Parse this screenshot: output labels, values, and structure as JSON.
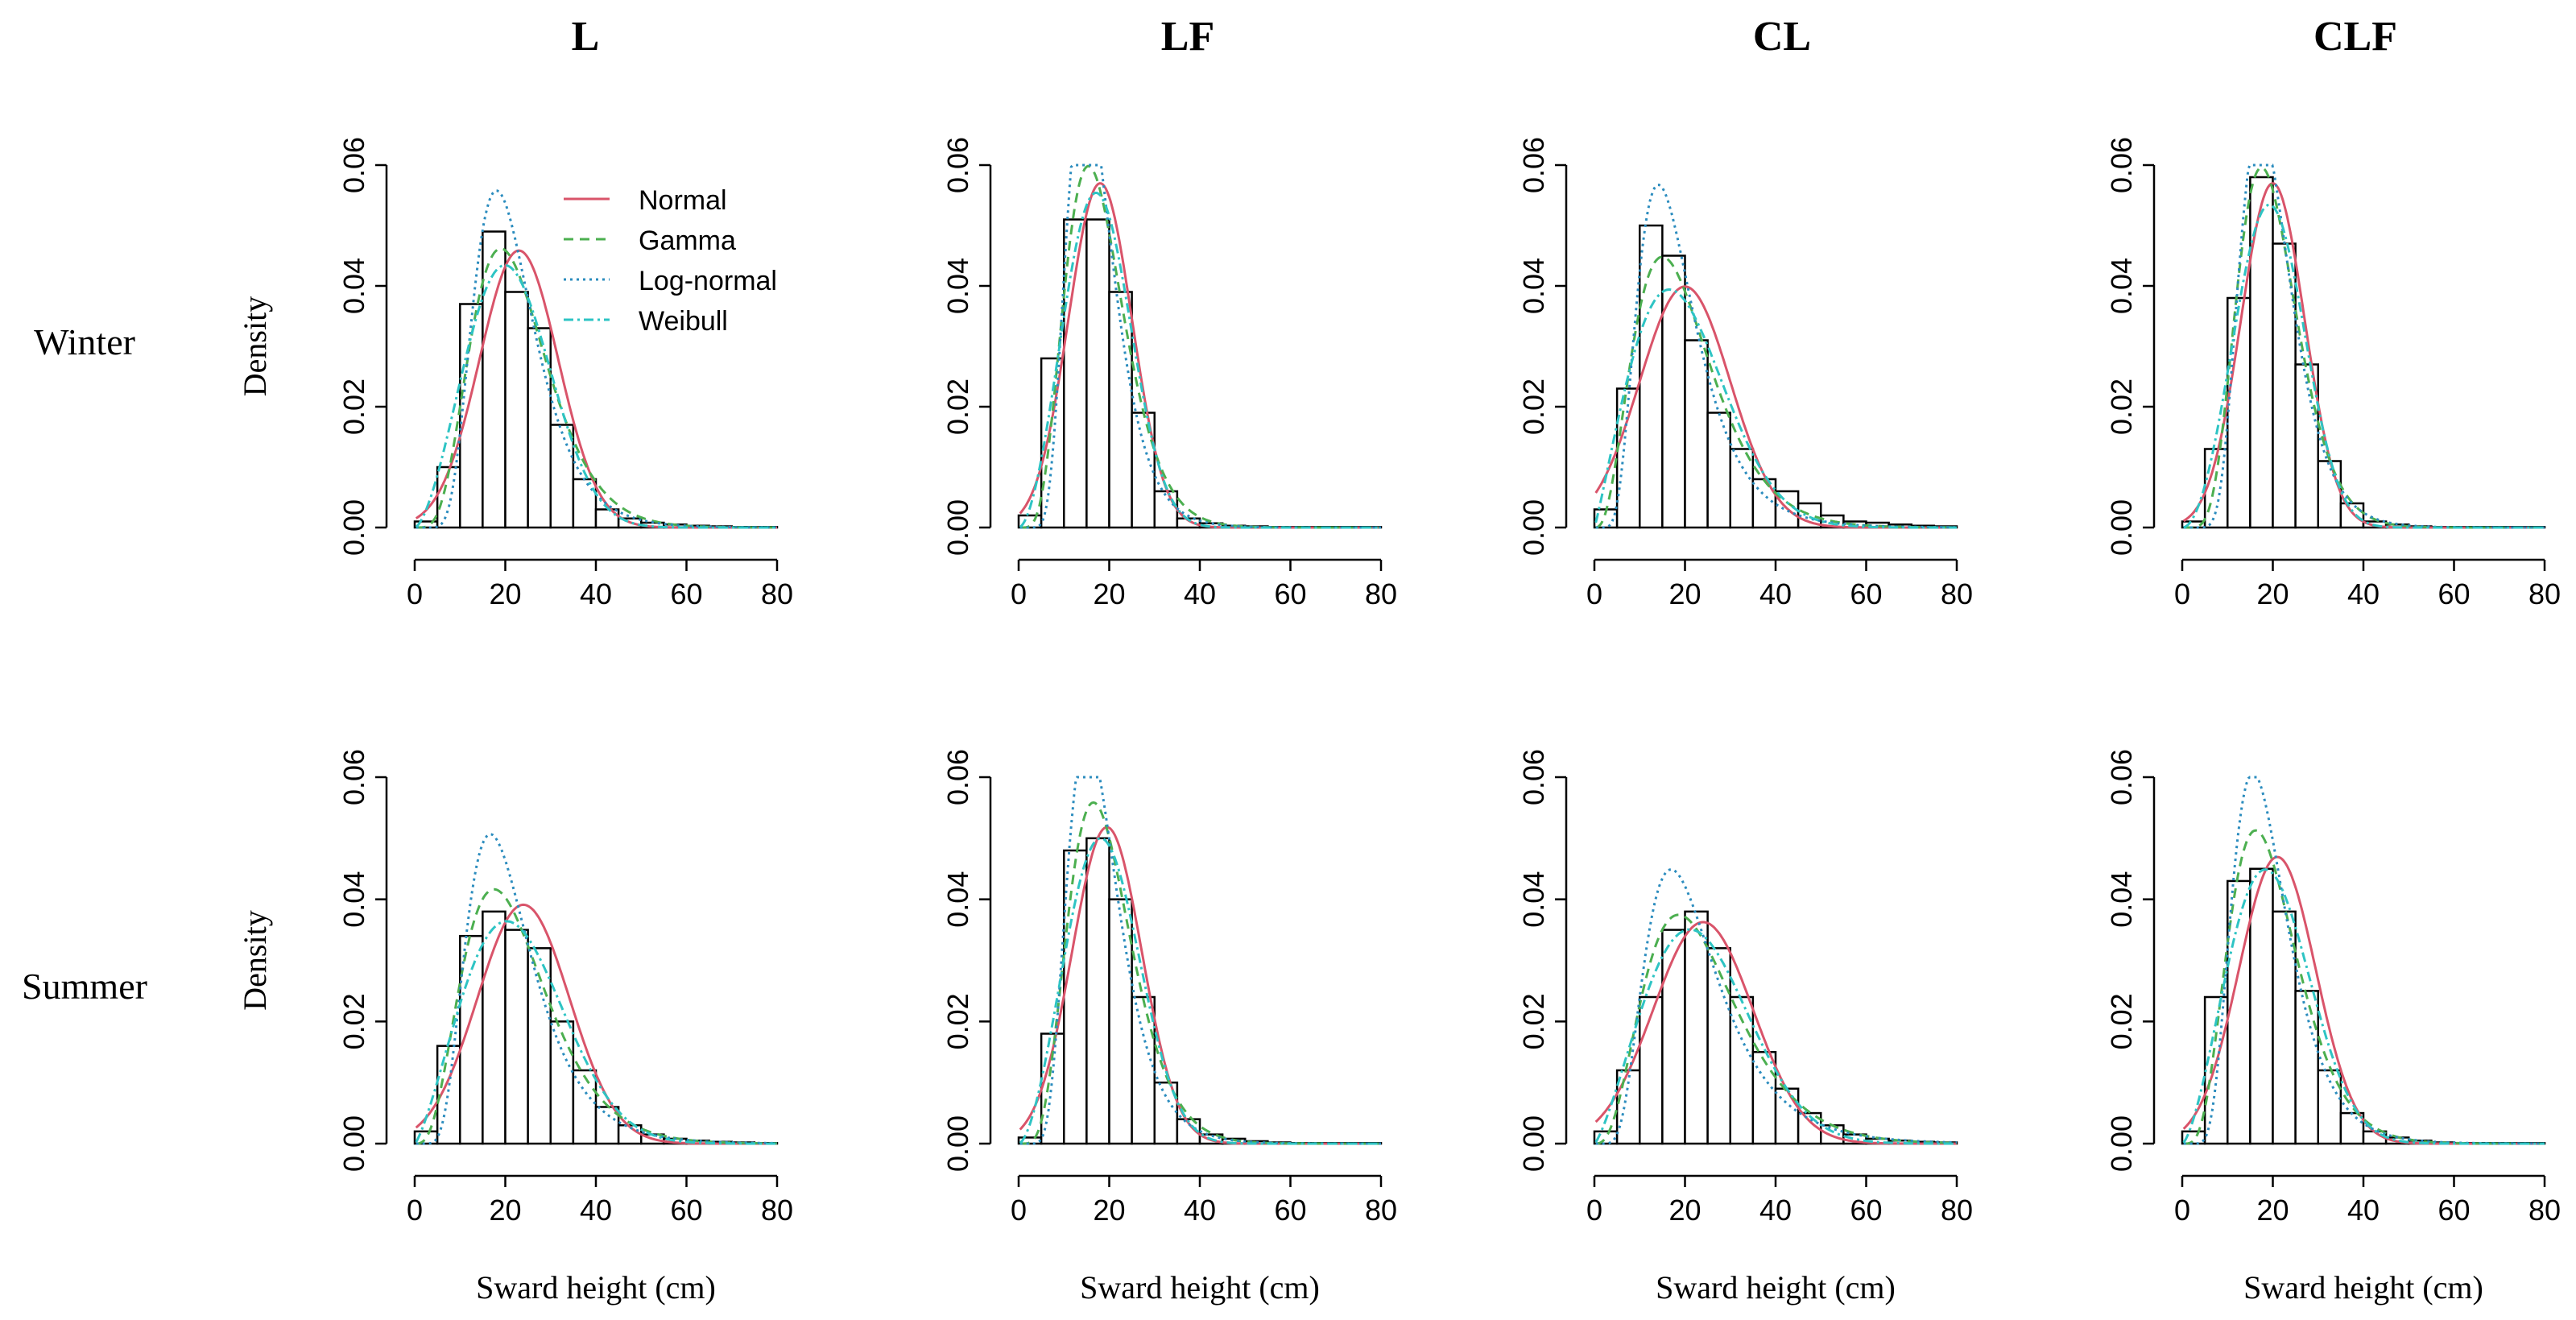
{
  "figure": {
    "column_titles": [
      "L",
      "LF",
      "CL",
      "CLF"
    ],
    "row_titles": [
      "Winter",
      "Summer"
    ],
    "ylabel": "Density",
    "xlabel": "Sward height (cm)"
  },
  "legend": {
    "placement": "top-right of first panel",
    "entries": [
      {
        "name": "Normal",
        "color": "#d9546a",
        "style": "solid"
      },
      {
        "name": "Gamma",
        "color": "#4caf50",
        "style": "dashed"
      },
      {
        "name": "Log-normal",
        "color": "#2b8cbe",
        "style": "dotted"
      },
      {
        "name": "Weibull",
        "color": "#2ec4c4",
        "style": "dashdot"
      }
    ]
  },
  "chart_data": [
    {
      "type": "bar",
      "panel": "L - Winter",
      "column": 0,
      "row": 0,
      "bin_edges": [
        0,
        5,
        10,
        15,
        20,
        25,
        30,
        35,
        40,
        45,
        50,
        55,
        60,
        65,
        70,
        75,
        80
      ],
      "values": [
        0.001,
        0.01,
        0.037,
        0.049,
        0.039,
        0.033,
        0.017,
        0.008,
        0.003,
        0.0015,
        0.0008,
        0.0005,
        0.0003,
        0.0002,
        0.0001,
        0.0001
      ],
      "fits": {
        "normal": {
          "mean": 23.0,
          "sd": 8.7
        },
        "gamma": {
          "shape": 6.0,
          "scale": 3.8
        },
        "lognormal": {
          "meanlog": 3.03,
          "sdlog": 0.37
        },
        "weibull": {
          "shape": 2.6,
          "scale": 24.0
        }
      },
      "xlim": [
        0,
        80
      ],
      "ylim": [
        0,
        0.06
      ],
      "xticks": [
        "0",
        "20",
        "40",
        "60",
        "80"
      ],
      "yticks": [
        "0.00",
        "0.02",
        "0.04",
        "0.06"
      ]
    },
    {
      "type": "bar",
      "panel": "LF - Winter",
      "column": 1,
      "row": 0,
      "bin_edges": [
        0,
        5,
        10,
        15,
        20,
        25,
        30,
        35,
        40,
        45,
        50,
        55,
        60,
        65,
        70,
        75,
        80
      ],
      "values": [
        0.002,
        0.028,
        0.051,
        0.051,
        0.039,
        0.019,
        0.006,
        0.0015,
        0.0007,
        0.0003,
        0.0002,
        0.0001,
        0.0001,
        0.0001,
        0.0001,
        0.0001
      ],
      "fits": {
        "normal": {
          "mean": 18.0,
          "sd": 7.0
        },
        "gamma": {
          "shape": 6.5,
          "scale": 2.8
        },
        "lognormal": {
          "meanlog": 2.8,
          "sdlog": 0.35
        },
        "weibull": {
          "shape": 2.8,
          "scale": 20.0
        }
      },
      "xlim": [
        0,
        80
      ],
      "ylim": [
        0,
        0.06
      ],
      "xticks": [
        "0",
        "20",
        "40",
        "60",
        "80"
      ],
      "yticks": [
        "0.00",
        "0.02",
        "0.04",
        "0.06"
      ]
    },
    {
      "type": "bar",
      "panel": "CL - Winter",
      "column": 2,
      "row": 0,
      "bin_edges": [
        0,
        5,
        10,
        15,
        20,
        25,
        30,
        35,
        40,
        45,
        50,
        55,
        60,
        65,
        70,
        75,
        80
      ],
      "values": [
        0.003,
        0.023,
        0.05,
        0.045,
        0.031,
        0.019,
        0.013,
        0.008,
        0.006,
        0.004,
        0.002,
        0.001,
        0.0008,
        0.0005,
        0.0003,
        0.0002
      ],
      "fits": {
        "normal": {
          "mean": 20.0,
          "sd": 10.0
        },
        "gamma": {
          "shape": 4.0,
          "scale": 5.0
        },
        "lognormal": {
          "meanlog": 2.85,
          "sdlog": 0.45
        },
        "weibull": {
          "shape": 2.1,
          "scale": 22.5
        }
      },
      "xlim": [
        0,
        80
      ],
      "ylim": [
        0,
        0.06
      ],
      "xticks": [
        "0",
        "20",
        "40",
        "60",
        "80"
      ],
      "yticks": [
        "0.00",
        "0.02",
        "0.04",
        "0.06"
      ]
    },
    {
      "type": "bar",
      "panel": "CLF - Winter",
      "column": 3,
      "row": 0,
      "bin_edges": [
        0,
        5,
        10,
        15,
        20,
        25,
        30,
        35,
        40,
        45,
        50,
        55,
        60,
        65,
        70,
        75,
        80
      ],
      "values": [
        0.001,
        0.013,
        0.038,
        0.058,
        0.047,
        0.027,
        0.011,
        0.004,
        0.001,
        0.0005,
        0.0002,
        0.0001,
        0.0001,
        0.0001,
        0.0001,
        0.0001
      ],
      "fits": {
        "normal": {
          "mean": 20.0,
          "sd": 7.0
        },
        "gamma": {
          "shape": 8.0,
          "scale": 2.5
        },
        "lognormal": {
          "meanlog": 2.95,
          "sdlog": 0.33
        },
        "weibull": {
          "shape": 3.0,
          "scale": 22.0
        }
      },
      "xlim": [
        0,
        80
      ],
      "ylim": [
        0,
        0.06
      ],
      "xticks": [
        "0",
        "20",
        "40",
        "60",
        "80"
      ],
      "yticks": [
        "0.00",
        "0.02",
        "0.04",
        "0.06"
      ]
    },
    {
      "type": "bar",
      "panel": "L - Summer",
      "column": 0,
      "row": 1,
      "bin_edges": [
        0,
        5,
        10,
        15,
        20,
        25,
        30,
        35,
        40,
        45,
        50,
        55,
        60,
        65,
        70,
        75,
        80
      ],
      "values": [
        0.002,
        0.016,
        0.034,
        0.038,
        0.035,
        0.032,
        0.02,
        0.012,
        0.006,
        0.003,
        0.0015,
        0.0008,
        0.0005,
        0.0003,
        0.0002,
        0.0001
      ],
      "fits": {
        "normal": {
          "mean": 24.0,
          "sd": 10.2
        },
        "gamma": {
          "shape": 4.5,
          "scale": 5.0
        },
        "lognormal": {
          "meanlog": 3.0,
          "sdlog": 0.43
        },
        "weibull": {
          "shape": 2.3,
          "scale": 26.0
        }
      },
      "xlim": [
        0,
        80
      ],
      "ylim": [
        0,
        0.06
      ],
      "xticks": [
        "0",
        "20",
        "40",
        "60",
        "80"
      ],
      "yticks": [
        "0.00",
        "0.02",
        "0.04",
        "0.06"
      ]
    },
    {
      "type": "bar",
      "panel": "LF - Summer",
      "column": 1,
      "row": 1,
      "bin_edges": [
        0,
        5,
        10,
        15,
        20,
        25,
        30,
        35,
        40,
        45,
        50,
        55,
        60,
        65,
        70,
        75,
        80
      ],
      "values": [
        0.001,
        0.018,
        0.048,
        0.05,
        0.04,
        0.024,
        0.01,
        0.004,
        0.0015,
        0.0008,
        0.0004,
        0.0002,
        0.0001,
        0.0001,
        0.0001,
        0.0001
      ],
      "fits": {
        "normal": {
          "mean": 19.5,
          "sd": 7.7
        },
        "gamma": {
          "shape": 6.5,
          "scale": 3.0
        },
        "lognormal": {
          "meanlog": 2.85,
          "sdlog": 0.37
        },
        "weibull": {
          "shape": 2.7,
          "scale": 21.5
        }
      },
      "xlim": [
        0,
        80
      ],
      "ylim": [
        0,
        0.06
      ],
      "xticks": [
        "0",
        "20",
        "40",
        "60",
        "80"
      ],
      "yticks": [
        "0.00",
        "0.02",
        "0.04",
        "0.06"
      ]
    },
    {
      "type": "bar",
      "panel": "CL - Summer",
      "column": 2,
      "row": 1,
      "bin_edges": [
        0,
        5,
        10,
        15,
        20,
        25,
        30,
        35,
        40,
        45,
        50,
        55,
        60,
        65,
        70,
        75,
        80
      ],
      "values": [
        0.002,
        0.012,
        0.024,
        0.035,
        0.038,
        0.032,
        0.024,
        0.015,
        0.009,
        0.005,
        0.003,
        0.0015,
        0.0008,
        0.0005,
        0.0003,
        0.0002
      ],
      "fits": {
        "normal": {
          "mean": 24.0,
          "sd": 11.0
        },
        "gamma": {
          "shape": 4.2,
          "scale": 5.8
        },
        "lognormal": {
          "meanlog": 3.05,
          "sdlog": 0.47
        },
        "weibull": {
          "shape": 2.3,
          "scale": 27.0
        }
      },
      "xlim": [
        0,
        80
      ],
      "ylim": [
        0,
        0.06
      ],
      "xticks": [
        "0",
        "20",
        "40",
        "60",
        "80"
      ],
      "yticks": [
        "0.00",
        "0.02",
        "0.04",
        "0.06"
      ]
    },
    {
      "type": "bar",
      "panel": "CLF - Summer",
      "column": 3,
      "row": 1,
      "bin_edges": [
        0,
        5,
        10,
        15,
        20,
        25,
        30,
        35,
        40,
        45,
        50,
        55,
        60,
        65,
        70,
        75,
        80
      ],
      "values": [
        0.002,
        0.024,
        0.043,
        0.045,
        0.038,
        0.025,
        0.012,
        0.005,
        0.002,
        0.001,
        0.0005,
        0.0002,
        0.0001,
        0.0001,
        0.0001,
        0.0001
      ],
      "fits": {
        "normal": {
          "mean": 21.0,
          "sd": 8.5
        },
        "gamma": {
          "shape": 5.5,
          "scale": 3.6
        },
        "lognormal": {
          "meanlog": 2.9,
          "sdlog": 0.39
        },
        "weibull": {
          "shape": 2.5,
          "scale": 22.5
        }
      },
      "xlim": [
        0,
        80
      ],
      "ylim": [
        0,
        0.06
      ],
      "xticks": [
        "0",
        "20",
        "40",
        "60",
        "80"
      ],
      "yticks": [
        "0.00",
        "0.02",
        "0.04",
        "0.06"
      ]
    }
  ]
}
